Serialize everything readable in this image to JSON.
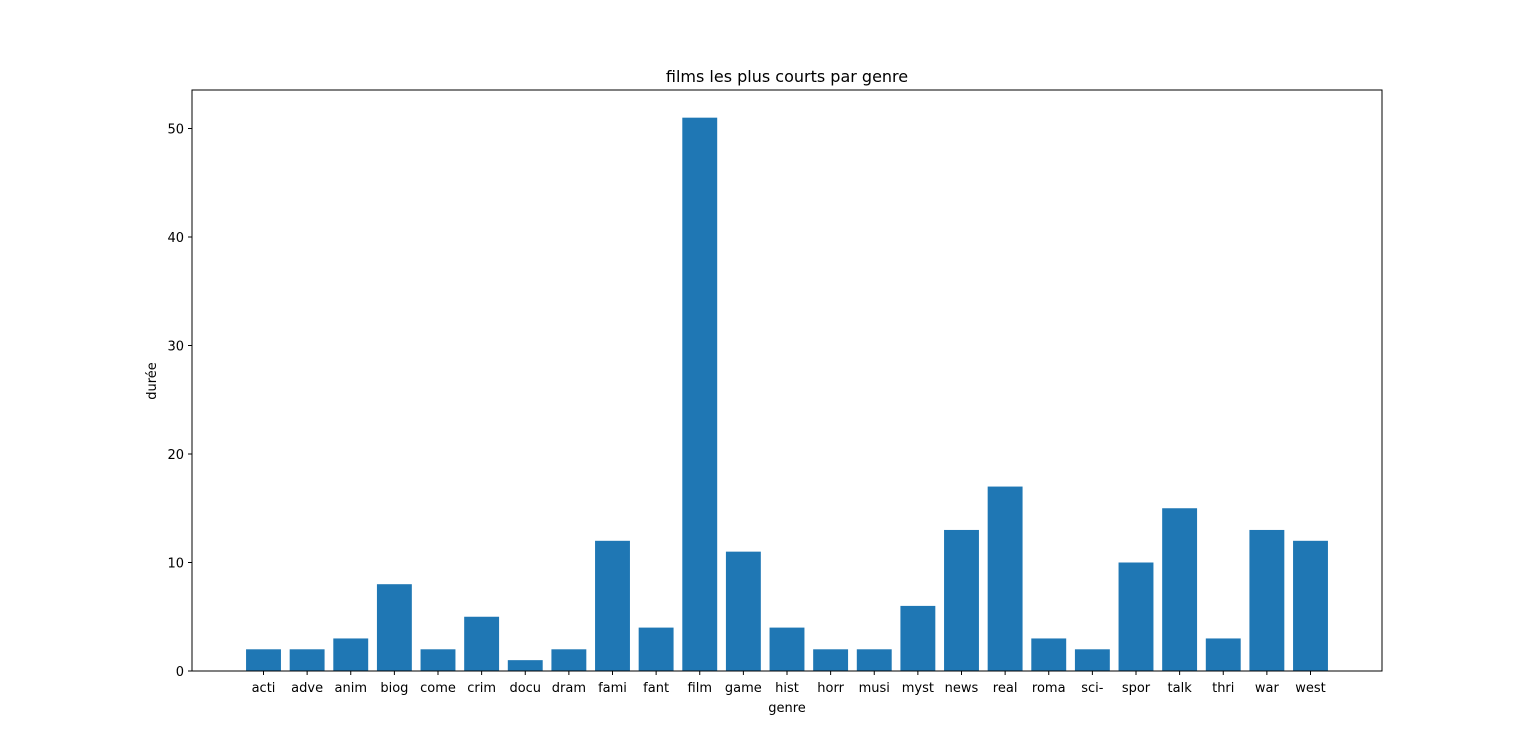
{
  "chart_data": {
    "type": "bar",
    "title": "films les plus courts par genre",
    "xlabel": "genre",
    "ylabel": "durée",
    "categories": [
      "acti",
      "adve",
      "anim",
      "biog",
      "come",
      "crim",
      "docu",
      "dram",
      "fami",
      "fant",
      "film",
      "game",
      "hist",
      "horr",
      "musi",
      "myst",
      "news",
      "real",
      "roma",
      "sci-",
      "spor",
      "talk",
      "thri",
      "war",
      "west"
    ],
    "values": [
      2,
      2,
      3,
      8,
      2,
      5,
      1,
      2,
      12,
      4,
      51,
      11,
      4,
      2,
      2,
      6,
      13,
      17,
      3,
      2,
      10,
      15,
      3,
      13,
      12
    ],
    "ylim": [
      0,
      53.55
    ],
    "yticks": [
      0,
      10,
      20,
      30,
      40,
      50
    ],
    "color": "#1f77b4",
    "grid": false
  }
}
